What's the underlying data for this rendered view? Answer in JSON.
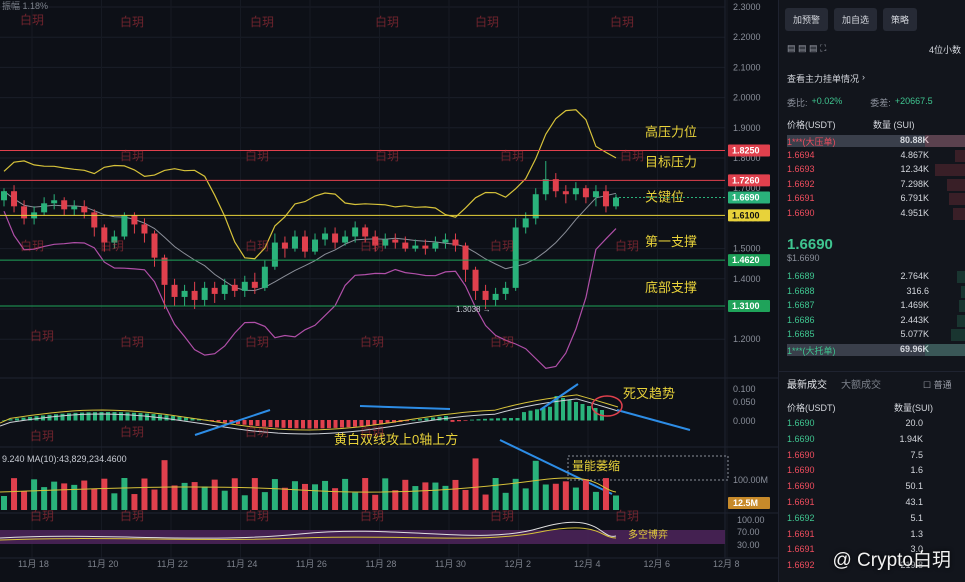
{
  "chart_data": {
    "type": "candlestick",
    "header_label": "振幅 1.18%",
    "price_axis": [
      "2.3000",
      "2.2000",
      "2.1000",
      "2.0000",
      "1.9000",
      "1.8000",
      "1.7000",
      "1.6000",
      "1.5000",
      "1.4000",
      "1.3000",
      "1.2000"
    ],
    "macd_axis": [
      "0.100",
      "0.050",
      "0.000"
    ],
    "volume_axis": [
      "100.00M"
    ],
    "rsi_axis": [
      "100.00",
      "70.00",
      "30.00"
    ],
    "dates": [
      "11月 18",
      "11月 20",
      "11月 22",
      "11月 24",
      "11月 26",
      "11月 28",
      "11月 30",
      "12月 2",
      "12月 4",
      "12月 6",
      "12月 8"
    ],
    "levels": [
      {
        "label": "高压力位",
        "price": 1.825,
        "tag": "1.8250",
        "color": "#e0404d"
      },
      {
        "label": "目标压力",
        "price": 1.726,
        "tag": "1.7260",
        "color": "#e0404d"
      },
      {
        "label": "关键位",
        "price": 1.61,
        "tag": "1.6100",
        "color": "#e8d23a"
      },
      {
        "label": "第一支撑",
        "price": 1.462,
        "tag": "1.4620",
        "color": "#1fa35a"
      },
      {
        "label": "底部支撑",
        "price": 1.31,
        "tag": "1.3100",
        "color": "#1fa35a"
      }
    ],
    "current_price_tag": "1.6690",
    "low_marker": "1.3038",
    "volume_ma_label": "9.240 MA(10):43,829,234.4600",
    "volume_tag": "12.5M",
    "annotations": {
      "death_cross": "死叉趋势",
      "macd_note": "黄白双线攻上0轴上方",
      "volume_note": "量能萎缩",
      "rsi_note": "多空博弈"
    },
    "watermark_text": "白玥",
    "candles": [
      [
        1.66,
        1.69,
        1.64,
        1.7
      ],
      [
        1.69,
        1.64,
        1.62,
        1.71
      ],
      [
        1.64,
        1.6,
        1.58,
        1.66
      ],
      [
        1.6,
        1.62,
        1.58,
        1.64
      ],
      [
        1.62,
        1.65,
        1.61,
        1.67
      ],
      [
        1.65,
        1.66,
        1.63,
        1.68
      ],
      [
        1.66,
        1.63,
        1.61,
        1.67
      ],
      [
        1.63,
        1.64,
        1.61,
        1.66
      ],
      [
        1.64,
        1.62,
        1.6,
        1.66
      ],
      [
        1.62,
        1.57,
        1.54,
        1.63
      ],
      [
        1.57,
        1.52,
        1.49,
        1.58
      ],
      [
        1.52,
        1.54,
        1.5,
        1.56
      ],
      [
        1.54,
        1.61,
        1.53,
        1.62
      ],
      [
        1.61,
        1.58,
        1.55,
        1.62
      ],
      [
        1.58,
        1.55,
        1.52,
        1.6
      ],
      [
        1.55,
        1.47,
        1.44,
        1.56
      ],
      [
        1.47,
        1.38,
        1.3,
        1.48
      ],
      [
        1.38,
        1.34,
        1.31,
        1.4
      ],
      [
        1.34,
        1.36,
        1.31,
        1.38
      ],
      [
        1.36,
        1.33,
        1.3,
        1.39
      ],
      [
        1.33,
        1.37,
        1.31,
        1.39
      ],
      [
        1.37,
        1.35,
        1.32,
        1.39
      ],
      [
        1.35,
        1.38,
        1.33,
        1.4
      ],
      [
        1.38,
        1.36,
        1.34,
        1.4
      ],
      [
        1.36,
        1.39,
        1.34,
        1.41
      ],
      [
        1.39,
        1.37,
        1.35,
        1.42
      ],
      [
        1.37,
        1.44,
        1.36,
        1.46
      ],
      [
        1.44,
        1.52,
        1.43,
        1.55
      ],
      [
        1.52,
        1.5,
        1.47,
        1.54
      ],
      [
        1.5,
        1.54,
        1.49,
        1.56
      ],
      [
        1.54,
        1.49,
        1.47,
        1.56
      ],
      [
        1.49,
        1.53,
        1.48,
        1.55
      ],
      [
        1.53,
        1.55,
        1.51,
        1.57
      ],
      [
        1.55,
        1.52,
        1.5,
        1.57
      ],
      [
        1.52,
        1.54,
        1.51,
        1.56
      ],
      [
        1.54,
        1.57,
        1.52,
        1.59
      ],
      [
        1.57,
        1.54,
        1.52,
        1.58
      ],
      [
        1.54,
        1.51,
        1.49,
        1.56
      ],
      [
        1.51,
        1.53,
        1.5,
        1.55
      ],
      [
        1.53,
        1.52,
        1.5,
        1.55
      ],
      [
        1.52,
        1.5,
        1.49,
        1.54
      ],
      [
        1.5,
        1.51,
        1.49,
        1.53
      ],
      [
        1.51,
        1.5,
        1.48,
        1.53
      ],
      [
        1.5,
        1.52,
        1.49,
        1.54
      ],
      [
        1.52,
        1.53,
        1.5,
        1.55
      ],
      [
        1.53,
        1.51,
        1.49,
        1.55
      ],
      [
        1.51,
        1.43,
        1.39,
        1.52
      ],
      [
        1.43,
        1.36,
        1.33,
        1.44
      ],
      [
        1.36,
        1.33,
        1.3,
        1.38
      ],
      [
        1.33,
        1.35,
        1.31,
        1.37
      ],
      [
        1.35,
        1.37,
        1.33,
        1.39
      ],
      [
        1.37,
        1.57,
        1.36,
        1.6
      ],
      [
        1.57,
        1.6,
        1.55,
        1.62
      ],
      [
        1.6,
        1.68,
        1.58,
        1.7
      ],
      [
        1.68,
        1.73,
        1.66,
        1.79
      ],
      [
        1.73,
        1.69,
        1.67,
        1.75
      ],
      [
        1.69,
        1.68,
        1.65,
        1.71
      ],
      [
        1.68,
        1.7,
        1.66,
        1.72
      ],
      [
        1.7,
        1.67,
        1.65,
        1.71
      ],
      [
        1.67,
        1.69,
        1.64,
        1.71
      ],
      [
        1.69,
        1.64,
        1.62,
        1.71
      ],
      [
        1.64,
        1.669,
        1.63,
        1.68
      ]
    ]
  },
  "sidebar": {
    "buttons": [
      "加预警",
      "加自选",
      "策略"
    ],
    "precision": "4位小数",
    "orders_link": "查看主力挂单情况",
    "ratio_label": "委比:",
    "ratio_value": "+0.02%",
    "diff_label": "委差:",
    "diff_value": "+20667.5",
    "book_header": {
      "price": "价格(USDT)",
      "qty": "数量 (SUI)"
    },
    "asks": [
      {
        "price": "1***(大压单)",
        "qty": "80.88K",
        "highlight": true
      },
      {
        "price": "1.6694",
        "qty": "4.867K"
      },
      {
        "price": "1.6693",
        "qty": "12.34K"
      },
      {
        "price": "1.6692",
        "qty": "7.298K"
      },
      {
        "price": "1.6691",
        "qty": "6.791K"
      },
      {
        "price": "1.6690",
        "qty": "4.951K"
      }
    ],
    "mid_price": "1.6690",
    "mid_sub": "$1.6690",
    "bids": [
      {
        "price": "1.6689",
        "qty": "2.764K"
      },
      {
        "price": "1.6688",
        "qty": "316.6"
      },
      {
        "price": "1.6687",
        "qty": "1.469K"
      },
      {
        "price": "1.6686",
        "qty": "2.443K"
      },
      {
        "price": "1.6685",
        "qty": "5.077K"
      },
      {
        "price": "1***(大托单)",
        "qty": "69.96K",
        "highlight": true
      }
    ],
    "trade_tabs": [
      "最新成交",
      "大额成交"
    ],
    "trade_filter": "普通",
    "trade_header": {
      "price": "价格(USDT)",
      "qty": "数量(SUI)"
    },
    "trades": [
      {
        "price": "1.6690",
        "qty": "20.0",
        "side": "buy"
      },
      {
        "price": "1.6690",
        "qty": "1.94K",
        "side": "buy"
      },
      {
        "price": "1.6690",
        "qty": "7.5",
        "side": "sell"
      },
      {
        "price": "1.6690",
        "qty": "1.6",
        "side": "sell"
      },
      {
        "price": "1.6690",
        "qty": "50.1",
        "side": "sell"
      },
      {
        "price": "1.6691",
        "qty": "43.1",
        "side": "sell"
      },
      {
        "price": "1.6692",
        "qty": "5.1",
        "side": "buy"
      },
      {
        "price": "1.6691",
        "qty": "1.3",
        "side": "sell"
      },
      {
        "price": "1.6691",
        "qty": "3.0",
        "side": "sell"
      },
      {
        "price": "1.6692",
        "qty": "219.8",
        "side": "sell"
      }
    ],
    "brand": "@ Crypto白玥"
  }
}
